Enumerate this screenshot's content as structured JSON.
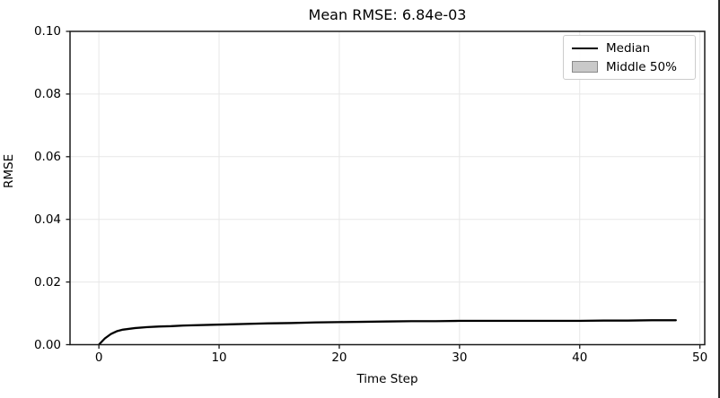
{
  "figure": {
    "title": "Mean RMSE: 6.84e-03",
    "xlabel": "Time Step",
    "ylabel": "RMSE"
  },
  "legend": {
    "position": "upper right",
    "items": [
      {
        "label": "Median",
        "type": "line",
        "color": "#000000"
      },
      {
        "label": "Middle 50%",
        "type": "patch",
        "fill": "#c9c9c9",
        "border": "#8a8a8a"
      }
    ]
  },
  "colors": {
    "grid": "#e7e7e7",
    "spine": "#1a1a1a",
    "tick": "#1a1a1a",
    "median_line": "#000000",
    "band_fill": "#c9c9c9",
    "legend_border": "#cccccc",
    "frame_border": "#2a2a2a"
  },
  "chart_data": {
    "type": "line",
    "title": "Mean RMSE: 6.84e-03",
    "xlabel": "Time Step",
    "ylabel": "RMSE",
    "xlim": [
      -2.4,
      50.4
    ],
    "ylim": [
      0,
      0.1
    ],
    "grid": true,
    "legend_position": "upper right",
    "xticks": {
      "values": [
        0,
        10,
        20,
        30,
        40,
        50
      ],
      "labels": [
        "0",
        "10",
        "20",
        "30",
        "40",
        "50"
      ]
    },
    "yticks": {
      "values": [
        0,
        0.02,
        0.04,
        0.06,
        0.08,
        0.1
      ],
      "labels": [
        "0.00",
        "0.02",
        "0.04",
        "0.06",
        "0.08",
        "0.10"
      ]
    },
    "series": [
      {
        "name": "Median",
        "type": "line",
        "color": "#000000",
        "x": [
          0,
          0.5,
          1,
          1.5,
          2,
          3,
          4,
          5,
          6,
          7,
          8,
          10,
          12,
          14,
          16,
          18,
          20,
          22,
          24,
          26,
          28,
          30,
          32,
          34,
          36,
          38,
          40,
          42,
          44,
          46,
          48
        ],
        "y": [
          0.0,
          0.002,
          0.0034,
          0.0043,
          0.0048,
          0.0053,
          0.0056,
          0.0058,
          0.0059,
          0.0061,
          0.0062,
          0.0064,
          0.0066,
          0.0068,
          0.0069,
          0.0071,
          0.0072,
          0.0073,
          0.0074,
          0.0075,
          0.0075,
          0.0076,
          0.0076,
          0.0076,
          0.0076,
          0.0076,
          0.0076,
          0.0077,
          0.0077,
          0.0078,
          0.0078
        ]
      },
      {
        "name": "Middle 50%",
        "type": "band",
        "around": "Median",
        "halfwidth": 0.0004,
        "fill": "#c9c9c9"
      }
    ]
  }
}
